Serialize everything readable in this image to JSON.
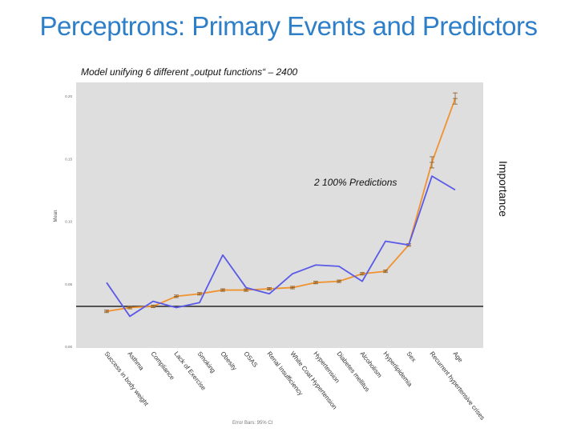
{
  "slide": {
    "title": "Perceptrons: Primary Events and Predictors",
    "subtitle": "Model unifying 6 different „output functions“ – 2400",
    "right_axis_label": "Importance",
    "annotation": "2 100% Predictions",
    "footer": "Error Bars: 95% CI"
  },
  "colors": {
    "plot_bg": "#dedede",
    "orange": "#f0922f",
    "blue": "#5a5ae8",
    "baseline": "#333333",
    "title": "#2e7fc8"
  },
  "chart_data": {
    "type": "line",
    "ylabel": "Mean",
    "ylim": [
      0,
      0.21
    ],
    "y_ticks": [
      "0.20",
      "0.15",
      "0.10",
      "0.05",
      "0.00"
    ],
    "y_tick_values": [
      0.2,
      0.15,
      0.1,
      0.05,
      0.0
    ],
    "grid": false,
    "categories": [
      "Success in body weight",
      "Asthma",
      "Compliance",
      "Lack of Exercise",
      "Smoking",
      "Obesity",
      "OSAS",
      "Renal Insufficiency",
      "White Coat Hypertension",
      "Hypertension",
      "Diabetes mellitus",
      "Alcoholism",
      "Hyperlipidemia",
      "Sex",
      "Recurrent hypertensive crises",
      "Age"
    ],
    "series": [
      {
        "color": "#f0922f",
        "error_bars": true,
        "values": [
          0.028,
          0.031,
          0.032,
          0.04,
          0.042,
          0.045,
          0.045,
          0.046,
          0.047,
          0.051,
          0.052,
          0.058,
          0.06,
          0.081,
          0.147,
          0.198
        ]
      },
      {
        "color": "#5a5ae8",
        "error_bars": false,
        "values": [
          0.051,
          0.024,
          0.036,
          0.031,
          0.035,
          0.073,
          0.047,
          0.042,
          0.058,
          0.065,
          0.064,
          0.052,
          0.084,
          0.081,
          0.136,
          0.125
        ]
      }
    ],
    "reference_line": 0.032
  }
}
